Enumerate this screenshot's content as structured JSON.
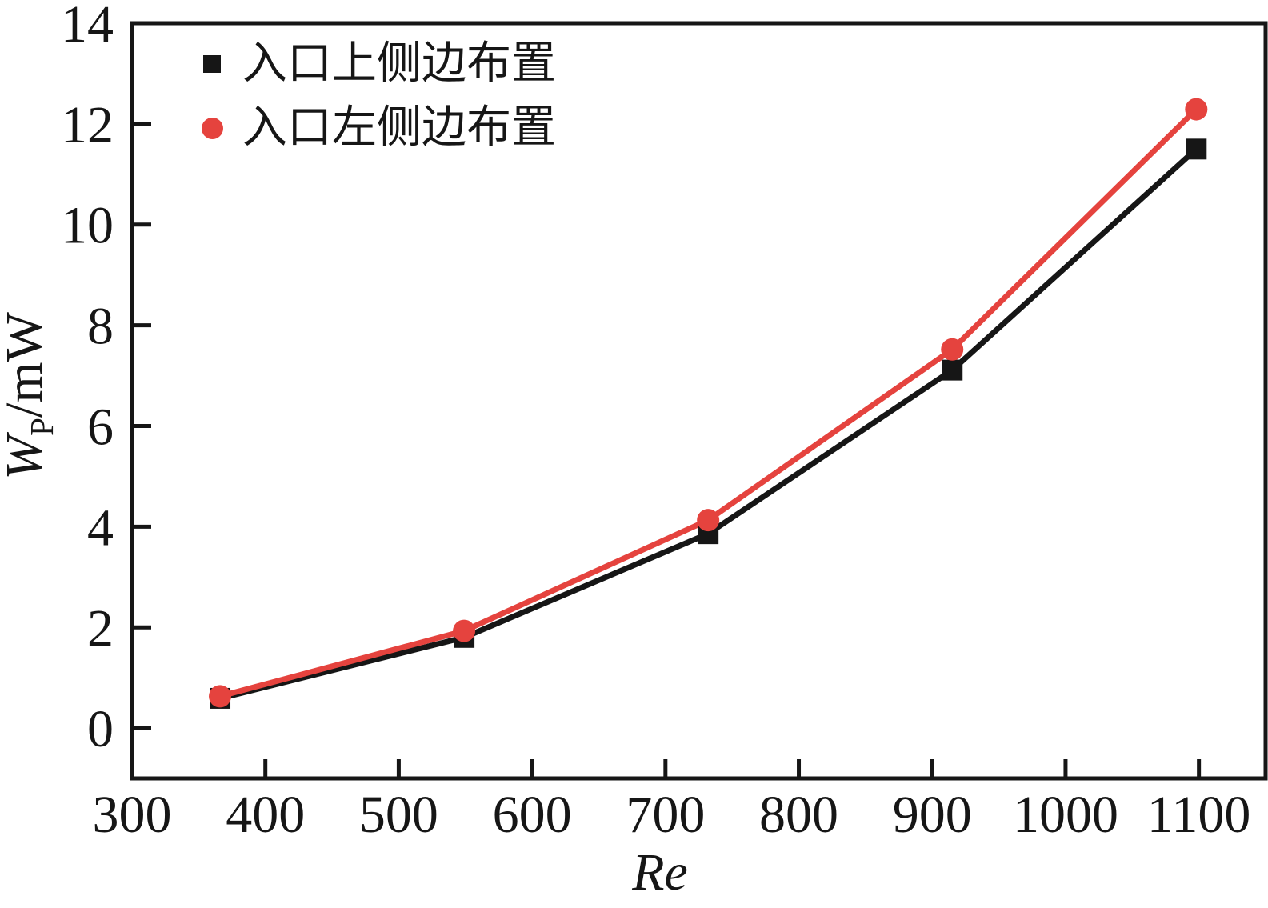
{
  "figure": {
    "background": "#ffffff",
    "axis_color": "#161616"
  },
  "chart_data": {
    "type": "line",
    "title": "",
    "xlabel": "Re",
    "ylabel": {
      "symbol": "W",
      "subscript": "P",
      "unit": "/mW"
    },
    "xlim": [
      300,
      1150
    ],
    "ylim": [
      -1,
      14
    ],
    "x_ticks": [
      300,
      400,
      500,
      600,
      700,
      800,
      900,
      1000,
      1100
    ],
    "y_ticks": [
      0,
      2,
      4,
      6,
      8,
      10,
      12,
      14
    ],
    "grid": false,
    "legend_position": "top-left",
    "x": [
      366,
      549,
      732,
      915,
      1098
    ],
    "series": [
      {
        "name": "入口上侧边布置",
        "marker": "square",
        "color": "#161616",
        "values": [
          0.59,
          1.8,
          3.86,
          7.11,
          11.5
        ]
      },
      {
        "name": "入口左侧边布置",
        "marker": "circle",
        "color": "#e5433e",
        "values": [
          0.63,
          1.93,
          4.13,
          7.52,
          12.29
        ]
      }
    ]
  }
}
